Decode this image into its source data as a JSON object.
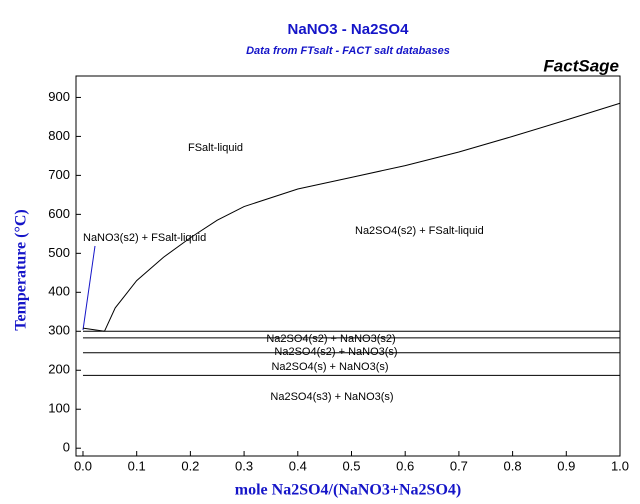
{
  "chart_data": {
    "type": "line",
    "title": "NaNO3 - Na2SO4",
    "subtitle": "Data from FTsalt - FACT salt databases",
    "brand": "FactSage",
    "x_label": "mole Na2SO4/(NaNO3+Na2SO4)",
    "y_label": "Temperature (°C)",
    "xlim": [
      -0.013,
      1.0
    ],
    "ylim": [
      -20,
      955
    ],
    "xticks": [
      {
        "value": 0,
        "label": "0.0"
      },
      0.1,
      0.2,
      0.3,
      0.4,
      0.5,
      0.6,
      0.7,
      0.8,
      0.9,
      {
        "value": 1,
        "label": "1.0"
      }
    ],
    "yticks": [
      0,
      100,
      200,
      300,
      400,
      500,
      600,
      700,
      800,
      900
    ],
    "series": [
      {
        "color": "#000000",
        "x": [
          0.04,
          0.06,
          0.1,
          0.15,
          0.2,
          0.25,
          0.3,
          0.4,
          0.5,
          0.6,
          0.7,
          0.8,
          0.9,
          1.0
        ],
        "values": [
          300,
          360,
          430,
          490,
          540,
          585,
          620,
          665,
          695,
          725,
          760,
          800,
          842,
          885
        ]
      },
      {
        "color": "#000000",
        "x": [
          0,
          0.04
        ],
        "values": [
          308,
          300
        ]
      },
      {
        "color": "#000000",
        "x": [
          0,
          1.0
        ],
        "values": [
          300,
          300
        ]
      },
      {
        "color": "#000000",
        "x": [
          0,
          1.0
        ],
        "values": [
          283,
          283
        ]
      },
      {
        "color": "#000000",
        "x": [
          0,
          1.0
        ],
        "values": [
          245,
          245
        ]
      },
      {
        "color": "#000000",
        "x": [
          0,
          1.0
        ],
        "values": [
          187,
          187
        ]
      }
    ],
    "annotations": [
      "FSalt-liquid",
      "NaNO3(s2) + FSalt-liquid",
      "Na2SO4(s2) + FSalt-liquid",
      "Na2SO4(s2) + NaNO3(s2)",
      "Na2SO4(s2) + NaNO3(s)",
      "Na2SO4(s) + NaNO3(s)",
      "Na2SO4(s3) + NaNO3(s)"
    ]
  }
}
